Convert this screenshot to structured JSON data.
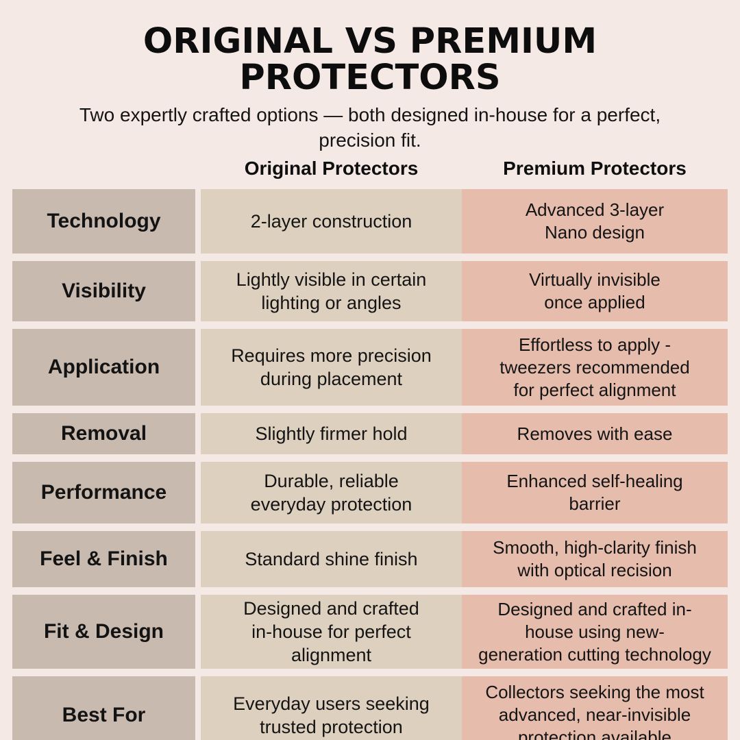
{
  "header": {
    "title": "ORIGINAL VS PREMIUM PROTECTORS",
    "subtitle": "Two expertly crafted options — both designed in-house for a perfect,\nprecision fit."
  },
  "table": {
    "column_headers": {
      "original": "Original Protectors",
      "premium": "Premium Protectors"
    },
    "rows": [
      {
        "label": "Technology",
        "original": "2-layer construction",
        "premium": "Advanced 3-layer\nNano design"
      },
      {
        "label": "Visibility",
        "original": "Lightly visible in certain\nlighting or angles",
        "premium": "Virtually invisible\nonce applied"
      },
      {
        "label": "Application",
        "original": "Requires more precision\nduring placement",
        "premium": "Effortless to apply -\ntweezers recommended\nfor perfect alignment"
      },
      {
        "label": "Removal",
        "original": "Slightly firmer hold",
        "premium": "Removes with ease"
      },
      {
        "label": "Performance",
        "original": "Durable, reliable\neveryday protection",
        "premium": "Enhanced self-healing\nbarrier"
      },
      {
        "label": "Feel & Finish",
        "original": "Standard shine finish",
        "premium": "Smooth, high-clarity finish\nwith optical recision"
      },
      {
        "label": "Fit & Design",
        "original": "Designed and crafted\nin-house for perfect\nalignment",
        "premium": "Designed and crafted in-\nhouse using new-\ngeneration cutting technology"
      },
      {
        "label": "Best For",
        "original": "Everyday users seeking\ntrusted protection",
        "premium": "Collectors seeking the most\nadvanced, near-invisible\nprotection available"
      }
    ]
  },
  "colors": {
    "background": "#f4e9e5",
    "label_cell": "#c9bab0",
    "original_cell": "#ded0bf",
    "premium_cell": "#e6bcac",
    "text": "#141414"
  }
}
